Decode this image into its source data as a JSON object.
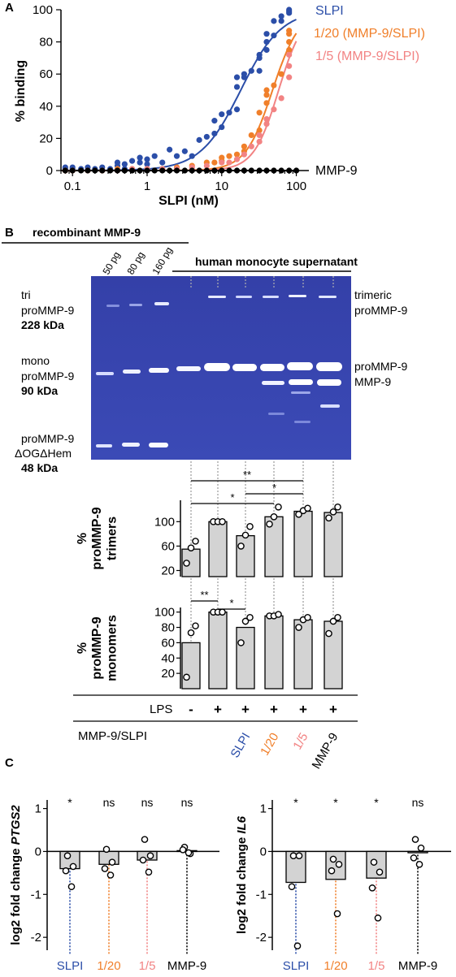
{
  "panels": {
    "A": "A",
    "B": "B",
    "C": "C"
  },
  "colors": {
    "SLPI": "#2b4ea8",
    "ratio_1_20": "#f07f2a",
    "ratio_1_5": "#f28383",
    "MMP9": "#000000",
    "gel": "#3a45b0",
    "bar": "#d3d3d3"
  },
  "chart_data": [
    {
      "type": "scatter",
      "panel": "A",
      "xlabel": "SLPI (nM)",
      "ylabel": "% binding",
      "xscale": "log",
      "xlim": [
        0.07,
        130
      ],
      "ylim": [
        0,
        100
      ],
      "xticks": [
        0.1,
        1,
        10,
        100
      ],
      "xtick_labels": [
        "0.1",
        "1",
        "10",
        "100"
      ],
      "yticks": [
        0,
        20,
        40,
        60,
        80,
        100
      ],
      "ytick_labels": [
        "0",
        "20",
        "40",
        "60",
        "80",
        "100"
      ],
      "series": [
        {
          "name": "SLPI",
          "key": "SLPI",
          "ec50": 18,
          "hill": 1.6,
          "top": 100,
          "points": [
            [
              0.08,
              1
            ],
            [
              0.08,
              2
            ],
            [
              0.1,
              1
            ],
            [
              0.1,
              2
            ],
            [
              0.13,
              1
            ],
            [
              0.16,
              2
            ],
            [
              0.2,
              1
            ],
            [
              0.25,
              2
            ],
            [
              0.32,
              1
            ],
            [
              0.4,
              3
            ],
            [
              0.4,
              5
            ],
            [
              0.5,
              1
            ],
            [
              0.5,
              4
            ],
            [
              0.63,
              6
            ],
            [
              0.8,
              5
            ],
            [
              0.8,
              8
            ],
            [
              1,
              4
            ],
            [
              1,
              7
            ],
            [
              1.26,
              9
            ],
            [
              1.6,
              5
            ],
            [
              2,
              13
            ],
            [
              2.5,
              9
            ],
            [
              3.2,
              12
            ],
            [
              4,
              9
            ],
            [
              5,
              19
            ],
            [
              6.3,
              21
            ],
            [
              8,
              23
            ],
            [
              8,
              31
            ],
            [
              10,
              27
            ],
            [
              10,
              35
            ],
            [
              12.6,
              36
            ],
            [
              16,
              38
            ],
            [
              16,
              52
            ],
            [
              16,
              58
            ],
            [
              20,
              58
            ],
            [
              20,
              60
            ],
            [
              25,
              62
            ],
            [
              32,
              62
            ],
            [
              32,
              70
            ],
            [
              32,
              72
            ],
            [
              40,
              75
            ],
            [
              40,
              80
            ],
            [
              40,
              85
            ],
            [
              50,
              84
            ],
            [
              50,
              93
            ],
            [
              63,
              93
            ],
            [
              63,
              96
            ],
            [
              80,
              98
            ],
            [
              80,
              99
            ],
            [
              80,
              100
            ]
          ]
        },
        {
          "name": "1/20 (MMP-9/SLPI)",
          "key": "ratio_1_20",
          "ec50": 48,
          "hill": 2.4,
          "top": 100,
          "points": [
            [
              0.08,
              0
            ],
            [
              0.1,
              0
            ],
            [
              0.16,
              0
            ],
            [
              0.25,
              0
            ],
            [
              0.4,
              1
            ],
            [
              0.63,
              1
            ],
            [
              1,
              1
            ],
            [
              1.6,
              1
            ],
            [
              2.5,
              2
            ],
            [
              4,
              3
            ],
            [
              6.3,
              5
            ],
            [
              8,
              5
            ],
            [
              10,
              6
            ],
            [
              10,
              8
            ],
            [
              12.6,
              9
            ],
            [
              16,
              10
            ],
            [
              20,
              12
            ],
            [
              20,
              15
            ],
            [
              25,
              22
            ],
            [
              32,
              25
            ],
            [
              32,
              36
            ],
            [
              40,
              42
            ],
            [
              40,
              47
            ],
            [
              40,
              50
            ],
            [
              50,
              53
            ],
            [
              63,
              60
            ],
            [
              80,
              75
            ],
            [
              80,
              80
            ],
            [
              80,
              85
            ],
            [
              80,
              87
            ]
          ]
        },
        {
          "name": "1/5 (MMP-9/SLPI)",
          "key": "ratio_1_5",
          "ec50": 58,
          "hill": 2.6,
          "top": 100,
          "points": [
            [
              0.08,
              0
            ],
            [
              0.1,
              0
            ],
            [
              0.16,
              0
            ],
            [
              0.25,
              0
            ],
            [
              0.4,
              0
            ],
            [
              0.63,
              1
            ],
            [
              1,
              1
            ],
            [
              1.6,
              1
            ],
            [
              2.5,
              1
            ],
            [
              4,
              2
            ],
            [
              6.3,
              3
            ],
            [
              10,
              5
            ],
            [
              12.6,
              5
            ],
            [
              16,
              7
            ],
            [
              20,
              10
            ],
            [
              25,
              15
            ],
            [
              32,
              18
            ],
            [
              32,
              22
            ],
            [
              40,
              29
            ],
            [
              40,
              32
            ],
            [
              50,
              38
            ],
            [
              63,
              45
            ],
            [
              80,
              58
            ],
            [
              80,
              65
            ],
            [
              80,
              72
            ]
          ]
        },
        {
          "name": "MMP-9",
          "key": "MMP9",
          "ec50": 1000000000.0,
          "hill": 1,
          "top": 0,
          "points": [
            [
              0.08,
              0
            ],
            [
              0.1,
              0
            ],
            [
              0.13,
              0
            ],
            [
              0.16,
              0
            ],
            [
              0.2,
              0
            ],
            [
              0.25,
              0
            ],
            [
              0.32,
              0
            ],
            [
              0.4,
              0
            ],
            [
              0.5,
              0
            ],
            [
              0.63,
              0
            ],
            [
              0.8,
              0
            ],
            [
              1,
              0
            ],
            [
              1.26,
              0
            ],
            [
              1.6,
              0
            ],
            [
              2,
              0
            ],
            [
              2.5,
              0
            ],
            [
              3.2,
              0
            ],
            [
              4,
              0
            ],
            [
              5,
              0
            ],
            [
              6.3,
              0
            ],
            [
              8,
              0
            ],
            [
              10,
              0
            ],
            [
              12.6,
              0
            ],
            [
              16,
              0
            ],
            [
              20,
              0
            ],
            [
              25,
              0
            ],
            [
              32,
              0
            ],
            [
              40,
              0
            ],
            [
              50,
              0
            ],
            [
              63,
              0
            ],
            [
              80,
              0
            ],
            [
              100,
              0
            ]
          ]
        }
      ]
    },
    {
      "type": "bar",
      "panel": "B-trimers",
      "ylabel_prefix": "%",
      "ylabel_lines": [
        "proMMP-9",
        "trimers"
      ],
      "ylim": [
        10,
        135
      ],
      "yticks": [
        20,
        60,
        100
      ],
      "ytick_labels": [
        "20",
        "60",
        "100"
      ],
      "values": [
        55,
        100,
        77,
        108,
        117,
        115
      ],
      "points": [
        [
          32,
          57,
          68
        ],
        [
          100,
          100,
          100
        ],
        [
          60,
          78,
          92
        ],
        [
          96,
          108,
          124
        ],
        [
          112,
          118,
          122
        ],
        [
          106,
          116,
          124
        ]
      ],
      "significance": [
        {
          "from": 0,
          "to": 4,
          "label": "**"
        },
        {
          "from": 0,
          "to": 3,
          "label": "*"
        },
        {
          "from": 2,
          "to": 4,
          "label": "*"
        }
      ]
    },
    {
      "type": "bar",
      "panel": "B-monomers",
      "ylabel_prefix": "%",
      "ylabel_lines": [
        "proMMP-9",
        "monomers"
      ],
      "ylim": [
        0,
        106
      ],
      "yticks": [
        20,
        40,
        60,
        80,
        100
      ],
      "ytick_labels": [
        "20",
        "40",
        "60",
        "80",
        "100"
      ],
      "values": [
        60,
        100,
        80,
        95,
        90,
        88
      ],
      "points": [
        [
          15,
          73,
          82
        ],
        [
          100,
          100,
          100
        ],
        [
          60,
          88,
          93
        ],
        [
          95,
          95,
          97
        ],
        [
          80,
          90,
          93
        ],
        [
          72,
          88,
          93
        ]
      ],
      "significance": [
        {
          "from": 0,
          "to": 1,
          "label": "**"
        },
        {
          "from": 1,
          "to": 2,
          "label": "*"
        }
      ]
    },
    {
      "type": "bar",
      "panel": "C-PTGS2",
      "ylabel_prefix": "log2 fold change ",
      "ylabel_gene": "PTGS2",
      "ylim": [
        -2.3,
        1.2
      ],
      "yticks": [
        1,
        0,
        -1,
        -2
      ],
      "ytick_labels": [
        "1",
        "0",
        "-1",
        "-2"
      ],
      "categories": [
        "SLPI",
        "1/20",
        "1/5",
        "MMP-9"
      ],
      "category_keys": [
        "SLPI",
        "ratio_1_20",
        "ratio_1_5",
        "MMP9"
      ],
      "values": [
        -0.4,
        -0.3,
        -0.2,
        0.02
      ],
      "points": [
        [
          -0.1,
          -0.35,
          -0.45,
          -0.82
        ],
        [
          0.05,
          -0.25,
          -0.4,
          -0.55
        ],
        [
          0.28,
          -0.1,
          -0.2,
          -0.48
        ],
        [
          0.1,
          -0.05,
          0.04,
          -0.03
        ]
      ],
      "significance_labels": [
        "*",
        "ns",
        "ns",
        "ns"
      ]
    },
    {
      "type": "bar",
      "panel": "C-IL6",
      "ylabel_prefix": "log2 fold change ",
      "ylabel_gene": "IL6",
      "ylim": [
        -2.3,
        1.2
      ],
      "yticks": [
        1,
        0,
        -1,
        -2
      ],
      "ytick_labels": [
        "1",
        "0",
        "-1",
        "-2"
      ],
      "categories": [
        "SLPI",
        "1/20",
        "1/5",
        "MMP-9"
      ],
      "category_keys": [
        "SLPI",
        "ratio_1_20",
        "ratio_1_5",
        "MMP9"
      ],
      "values": [
        -0.72,
        -0.65,
        -0.62,
        -0.03
      ],
      "points": [
        [
          -0.1,
          -0.1,
          -0.82,
          -2.2
        ],
        [
          -0.18,
          -0.3,
          -0.45,
          -1.45
        ],
        [
          -0.25,
          -0.48,
          -0.85,
          -1.55
        ],
        [
          0.28,
          0.08,
          -0.15,
          -0.3
        ]
      ],
      "significance_labels": [
        "*",
        "*",
        "*",
        "ns"
      ]
    }
  ],
  "gel": {
    "header_recombinant": "recombinant MMP-9",
    "header_monocyte": "human monocyte supernatant",
    "lane_labels": [
      "50 pg",
      "80 pg",
      "160 pg"
    ],
    "left_labels": [
      {
        "lines": [
          "tri",
          "proMMP-9"
        ],
        "kda": "228 kDa"
      },
      {
        "lines": [
          "mono",
          "proMMP-9"
        ],
        "kda": "90 kDa"
      },
      {
        "lines": [
          "proMMP-9",
          "ΔOGΔHem"
        ],
        "kda": "48 kDa"
      }
    ],
    "right_labels": [
      "trimeric",
      "proMMP-9",
      "proMMP-9",
      "MMP-9"
    ]
  },
  "conditions": {
    "lps_label": "LPS",
    "lps_values": [
      "-",
      "+",
      "+",
      "+",
      "+",
      "+"
    ],
    "treatment_label": "MMP-9/SLPI",
    "treatments": [
      "SLPI",
      "1/20",
      "1/5",
      "MMP-9"
    ],
    "treatment_keys": [
      "SLPI",
      "ratio_1_20",
      "ratio_1_5",
      "MMP9"
    ]
  }
}
